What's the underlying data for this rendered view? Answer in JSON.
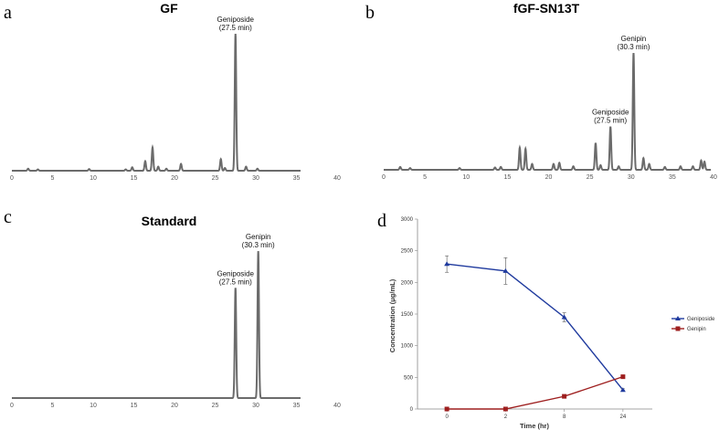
{
  "chart_data": [
    {
      "type": "line",
      "panel_letter": "a",
      "title": "GF",
      "xlim": [
        0,
        40
      ],
      "x_ticks": [
        "0",
        "5",
        "10",
        "15",
        "20",
        "25",
        "30",
        "35",
        "40"
      ],
      "peaks": [
        {
          "rt": 2.0,
          "height": 0.015
        },
        {
          "rt": 3.2,
          "height": 0.01
        },
        {
          "rt": 9.5,
          "height": 0.012
        },
        {
          "rt": 14.0,
          "height": 0.01
        },
        {
          "rt": 14.8,
          "height": 0.025
        },
        {
          "rt": 16.4,
          "height": 0.07
        },
        {
          "rt": 17.3,
          "height": 0.17
        },
        {
          "rt": 18.0,
          "height": 0.03
        },
        {
          "rt": 19.0,
          "height": 0.015
        },
        {
          "rt": 20.8,
          "height": 0.05
        },
        {
          "rt": 25.7,
          "height": 0.085
        },
        {
          "rt": 26.2,
          "height": 0.02
        },
        {
          "rt": 27.5,
          "height": 1.0
        },
        {
          "rt": 28.8,
          "height": 0.03
        },
        {
          "rt": 30.2,
          "height": 0.015
        }
      ],
      "annotations": [
        {
          "line1": "Geniposide",
          "line2": "(27.5 min)",
          "rt": 27.5
        }
      ]
    },
    {
      "type": "line",
      "panel_letter": "b",
      "title": "fGF-SN13T",
      "xlim": [
        0,
        40
      ],
      "x_ticks": [
        "0",
        "5",
        "10",
        "15",
        "20",
        "25",
        "30",
        "35",
        "40"
      ],
      "peaks": [
        {
          "rt": 2.0,
          "height": 0.025
        },
        {
          "rt": 3.2,
          "height": 0.015
        },
        {
          "rt": 9.2,
          "height": 0.015
        },
        {
          "rt": 13.5,
          "height": 0.02
        },
        {
          "rt": 14.2,
          "height": 0.025
        },
        {
          "rt": 16.5,
          "height": 0.19
        },
        {
          "rt": 17.2,
          "height": 0.18
        },
        {
          "rt": 18.0,
          "height": 0.05
        },
        {
          "rt": 20.6,
          "height": 0.05
        },
        {
          "rt": 21.3,
          "height": 0.06
        },
        {
          "rt": 23.0,
          "height": 0.03
        },
        {
          "rt": 25.7,
          "height": 0.23
        },
        {
          "rt": 26.3,
          "height": 0.04
        },
        {
          "rt": 27.5,
          "height": 0.37
        },
        {
          "rt": 28.5,
          "height": 0.03
        },
        {
          "rt": 30.3,
          "height": 1.0
        },
        {
          "rt": 31.5,
          "height": 0.1
        },
        {
          "rt": 32.2,
          "height": 0.05
        },
        {
          "rt": 34.1,
          "height": 0.025
        },
        {
          "rt": 36.0,
          "height": 0.03
        },
        {
          "rt": 37.5,
          "height": 0.03
        },
        {
          "rt": 38.5,
          "height": 0.08
        },
        {
          "rt": 38.9,
          "height": 0.07
        }
      ],
      "annotations": [
        {
          "line1": "Geniposide",
          "line2": "(27.5 min)",
          "rt": 27.5
        },
        {
          "line1": "Genipin",
          "line2": "(30.3 min)",
          "rt": 30.3
        }
      ]
    },
    {
      "type": "line",
      "panel_letter": "c",
      "title": "Standard",
      "xlim": [
        0,
        40
      ],
      "x_ticks": [
        "0",
        "5",
        "10",
        "15",
        "20",
        "25",
        "30",
        "35",
        "40"
      ],
      "peaks": [
        {
          "rt": 27.5,
          "height": 0.75
        },
        {
          "rt": 30.3,
          "height": 1.0
        }
      ],
      "annotations": [
        {
          "line1": "Geniposide",
          "line2": "(27.5 min)",
          "rt": 27.5
        },
        {
          "line1": "Genipin",
          "line2": "(30.3 min)",
          "rt": 30.3
        }
      ]
    },
    {
      "type": "line",
      "panel_letter": "d",
      "xlabel": "Time (hr)",
      "ylabel": "Concentration (μg/mL)",
      "categories": [
        "0",
        "2",
        "8",
        "24"
      ],
      "ylim": [
        0,
        3000
      ],
      "y_ticks": [
        "0",
        "500",
        "1000",
        "1500",
        "2000",
        "2500",
        "3000"
      ],
      "series": [
        {
          "name": "Geniposide",
          "color": "#1f3a9e",
          "marker": "triangle",
          "values": [
            2290,
            2180,
            1450,
            300
          ],
          "errors": [
            130,
            210,
            70,
            20
          ]
        },
        {
          "name": "Genipin",
          "color": "#9e1f1f",
          "marker": "square",
          "values": [
            0,
            0,
            200,
            510
          ],
          "errors": [
            0,
            0,
            0,
            0
          ]
        }
      ]
    }
  ]
}
